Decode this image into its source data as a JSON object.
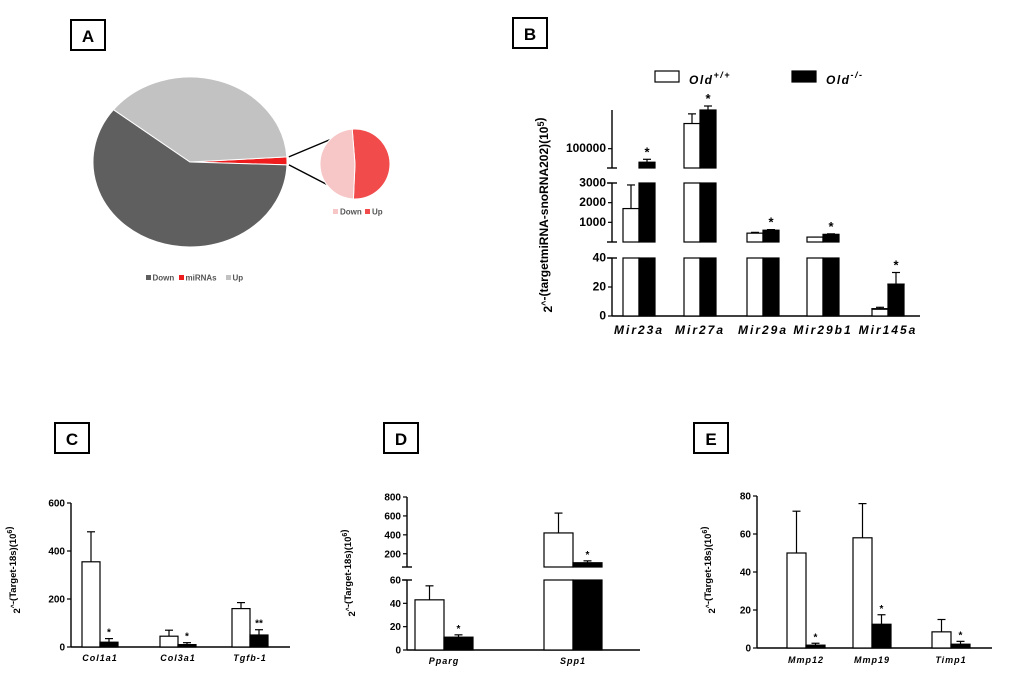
{
  "figure": {
    "panels": [
      "A",
      "B",
      "C",
      "D",
      "E"
    ]
  },
  "chart_data": [
    {
      "panel": "A",
      "type": "pie",
      "title": "",
      "slices": [
        {
          "label": "Down",
          "value": 60,
          "color": "#5f5f5f"
        },
        {
          "label": "miRNAs",
          "value": 1.5,
          "color": "#ee1c1c"
        },
        {
          "label": "Up",
          "value": 38.5,
          "color": "#c2c2c2"
        }
      ],
      "inset": {
        "type": "pie",
        "slices": [
          {
            "label": "Down",
            "value": 48,
            "color": "#f7c6c6"
          },
          {
            "label": "Up",
            "value": 52,
            "color": "#f24b4b"
          }
        ]
      },
      "legend": [
        "Down",
        "miRNAs",
        "Up"
      ]
    },
    {
      "panel": "B",
      "type": "bar",
      "ylabel": "2^-(targetmiRNA-snoRNA202)(10^5)",
      "ylabel_base": "2",
      "ylabel_sup1": "^",
      "ylabel_mid": "-(targetmiRNA-snoRNA202)(10",
      "ylabel_sup2": "5",
      "ylabel_end": ")",
      "axis_breaks": [
        [
          0,
          40
        ],
        [
          0,
          3000
        ],
        [
          90000,
          120000
        ]
      ],
      "yticks": [
        0,
        20,
        40,
        1000,
        2000,
        3000,
        100000
      ],
      "ytick_labels": [
        "0",
        "20",
        "40",
        "1000",
        "2000",
        "3000",
        "100000"
      ],
      "categories": [
        "Mir23a",
        "Mir27a",
        "Mir29a",
        "Mir29b1",
        "Mir145a"
      ],
      "legend": [
        {
          "base": "Old",
          "sup": "+/+",
          "fill": "#ffffff"
        },
        {
          "base": "Old",
          "sup": "-/-",
          "fill": "#000000"
        }
      ],
      "series": [
        {
          "name": "Old+/+",
          "values": [
            1700,
            113000,
            450,
            250,
            5
          ],
          "errors": [
            1200,
            5000,
            40,
            0,
            1
          ]
        },
        {
          "name": "Old-/-",
          "values": [
            93000,
            120000,
            600,
            390,
            22
          ],
          "errors": [
            1500,
            1500,
            30,
            25,
            8
          ]
        }
      ],
      "significance": [
        "*",
        "*",
        "*",
        "*",
        "*"
      ]
    },
    {
      "panel": "C",
      "type": "bar",
      "ylabel_base": "2",
      "ylabel_sup1": "^",
      "ylabel_mid": "-(Target-18s)(10",
      "ylabel_sup2": "6",
      "ylabel_end": ")",
      "ylim": [
        0,
        600
      ],
      "yticks": [
        0,
        200,
        400,
        600
      ],
      "categories": [
        "Col1a1",
        "Col3a1",
        "Tgfb-1"
      ],
      "series": [
        {
          "name": "Old+/+",
          "values": [
            355,
            45,
            160
          ],
          "errors": [
            125,
            25,
            25
          ]
        },
        {
          "name": "Old-/-",
          "values": [
            20,
            10,
            50
          ],
          "errors": [
            15,
            8,
            22
          ]
        }
      ],
      "significance": [
        "*",
        "*",
        "**"
      ]
    },
    {
      "panel": "D",
      "type": "bar",
      "ylabel_base": "2",
      "ylabel_sup1": "^",
      "ylabel_mid": "-(Target-18s)(10",
      "ylabel_sup2": "6",
      "ylabel_end": ")",
      "axis_breaks": [
        [
          0,
          60
        ],
        [
          60,
          800
        ]
      ],
      "yticks": [
        0,
        20,
        40,
        60,
        200,
        400,
        600,
        800
      ],
      "categories": [
        "Pparg",
        "Spp1"
      ],
      "series": [
        {
          "name": "Old+/+",
          "values": [
            43,
            420
          ],
          "errors": [
            12,
            210
          ]
        },
        {
          "name": "Old-/-",
          "values": [
            11,
            105
          ],
          "errors": [
            2,
            20
          ]
        }
      ],
      "significance": [
        "*",
        "*"
      ]
    },
    {
      "panel": "E",
      "type": "bar",
      "ylabel_base": "2",
      "ylabel_sup1": "^",
      "ylabel_mid": "-(Target-18s)(10",
      "ylabel_sup2": "6",
      "ylabel_end": ")",
      "ylim": [
        0,
        80
      ],
      "yticks": [
        0,
        20,
        40,
        60,
        80
      ],
      "categories": [
        "Mmp12",
        "Mmp19",
        "Timp1"
      ],
      "series": [
        {
          "name": "Old+/+",
          "values": [
            50,
            58,
            8.5
          ],
          "errors": [
            22,
            18,
            6.5
          ]
        },
        {
          "name": "Old-/-",
          "values": [
            1.5,
            12.5,
            2
          ],
          "errors": [
            1,
            5,
            1.5
          ]
        }
      ],
      "significance": [
        "*",
        "*",
        "*"
      ]
    }
  ]
}
